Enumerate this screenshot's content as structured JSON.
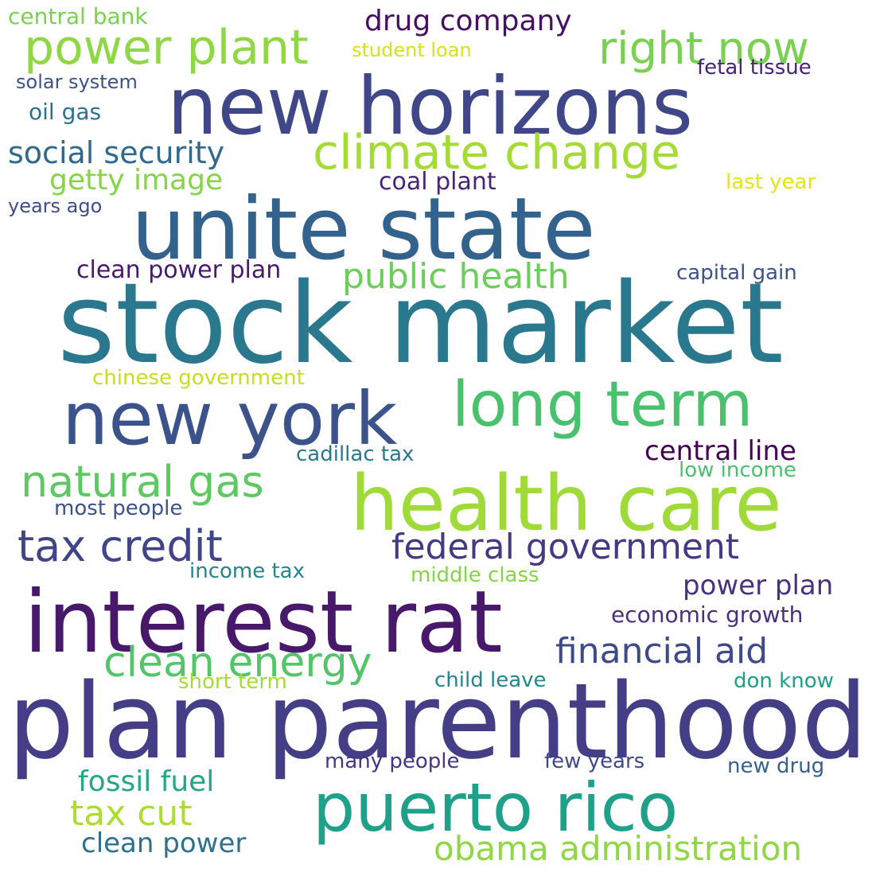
{
  "words": [
    {
      "id": "stock-market",
      "text": "stock market",
      "color": "#2a788e"
    },
    {
      "id": "plan-parenthood",
      "text": "plan parenthood",
      "color": "#433e85"
    },
    {
      "id": "unite-state",
      "text": "unite state",
      "color": "#33638d"
    },
    {
      "id": "new-horizons",
      "text": "new horizons",
      "color": "#3f4788"
    },
    {
      "id": "interest-rat",
      "text": "interest rat",
      "color": "#48186a"
    },
    {
      "id": "health-care",
      "text": "health care",
      "color": "#a0da39"
    },
    {
      "id": "new-york",
      "text": "new york",
      "color": "#3b528b"
    },
    {
      "id": "long-term",
      "text": "long term",
      "color": "#4ac16d"
    },
    {
      "id": "puerto-rico",
      "text": "puerto rico",
      "color": "#1fa088"
    },
    {
      "id": "climate-change",
      "text": "climate change",
      "color": "#a5db36"
    },
    {
      "id": "power-plant",
      "text": "power plant",
      "color": "#8fd744"
    },
    {
      "id": "right-now",
      "text": "right now",
      "color": "#7ad151"
    },
    {
      "id": "natural-gas",
      "text": "natural gas",
      "color": "#5ec962"
    },
    {
      "id": "tax-credit",
      "text": "tax credit",
      "color": "#414487"
    },
    {
      "id": "clean-energy",
      "text": "clean energy",
      "color": "#52c569"
    },
    {
      "id": "public-health",
      "text": "public health",
      "color": "#6ccd5a"
    },
    {
      "id": "federal-government",
      "text": "federal government",
      "color": "#443983"
    },
    {
      "id": "financial-aid",
      "text": "financial aid",
      "color": "#3e4a89"
    },
    {
      "id": "obama-administration",
      "text": "obama administration",
      "color": "#8fd744"
    },
    {
      "id": "tax-cut",
      "text": "tax cut",
      "color": "#addc30"
    },
    {
      "id": "social-security",
      "text": "social security",
      "color": "#31688e"
    },
    {
      "id": "drug-company",
      "text": "drug company",
      "color": "#471063"
    },
    {
      "id": "getty-image",
      "text": "getty image",
      "color": "#86d549"
    },
    {
      "id": "fossil-fuel",
      "text": "fossil fuel",
      "color": "#22a884"
    },
    {
      "id": "clean-power",
      "text": "clean power",
      "color": "#2c728e"
    },
    {
      "id": "central-line",
      "text": "central line",
      "color": "#440154"
    },
    {
      "id": "power-plan",
      "text": "power plan",
      "color": "#46337e"
    },
    {
      "id": "clean-power-plan",
      "text": "clean power plan",
      "color": "#481a6c"
    },
    {
      "id": "economic-growth",
      "text": "economic growth",
      "color": "#46327e"
    },
    {
      "id": "coal-plant",
      "text": "coal plant",
      "color": "#482475"
    },
    {
      "id": "central-bank",
      "text": "central bank",
      "color": "#7ad151"
    },
    {
      "id": "oil-gas",
      "text": "oil gas",
      "color": "#2d708e"
    },
    {
      "id": "cadillac-tax",
      "text": "cadillac tax",
      "color": "#2a788e"
    },
    {
      "id": "child-leave",
      "text": "child leave",
      "color": "#25858e"
    },
    {
      "id": "capital-gain",
      "text": "capital gain",
      "color": "#3b528b"
    },
    {
      "id": "fetal-tissue",
      "text": "fetal tissue",
      "color": "#482475"
    },
    {
      "id": "solar-system",
      "text": "solar system",
      "color": "#3b528b"
    },
    {
      "id": "student-loan",
      "text": "student loan",
      "color": "#d8e219"
    },
    {
      "id": "years-ago",
      "text": "years ago",
      "color": "#3e4c8a"
    },
    {
      "id": "last-year",
      "text": "last year",
      "color": "#e5e419"
    },
    {
      "id": "chinese-government",
      "text": "chinese government",
      "color": "#c2df23"
    },
    {
      "id": "low-income",
      "text": "low income",
      "color": "#4ac16d"
    },
    {
      "id": "most-people",
      "text": "most people",
      "color": "#3b528b"
    },
    {
      "id": "income-tax",
      "text": "income tax",
      "color": "#25848e"
    },
    {
      "id": "middle-class",
      "text": "middle class",
      "color": "#86d549"
    },
    {
      "id": "short-term",
      "text": "short term",
      "color": "#a5db36"
    },
    {
      "id": "don-know",
      "text": "don know",
      "color": "#1f9e89"
    },
    {
      "id": "many-people",
      "text": "many people",
      "color": "#453781"
    },
    {
      "id": "few-years",
      "text": "few years",
      "color": "#3e4a89"
    },
    {
      "id": "new-drug",
      "text": "new drug",
      "color": "#33638d"
    }
  ]
}
